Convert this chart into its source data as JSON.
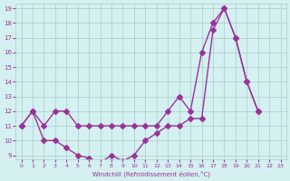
{
  "xlabel": "Windchill (Refroidissement éolien,°C)",
  "x": [
    0,
    1,
    2,
    3,
    4,
    5,
    6,
    7,
    8,
    9,
    10,
    11,
    12,
    13,
    14,
    15,
    16,
    17,
    18,
    19,
    20,
    21,
    22,
    23
  ],
  "temp_line": [
    11,
    12,
    11,
    12,
    12,
    11,
    11,
    11,
    11,
    11,
    11,
    11,
    11,
    12,
    13,
    12,
    16,
    18,
    19,
    17,
    14,
    12,
    null,
    null
  ],
  "windchill_line": [
    11,
    12,
    10,
    10,
    9.5,
    9,
    8.8,
    8.5,
    9,
    8.6,
    9,
    10,
    10.5,
    11,
    11,
    11.5,
    11.5,
    17.5,
    19,
    17,
    14,
    12,
    null,
    null
  ],
  "ylim": [
    9,
    19
  ],
  "xlim": [
    0,
    23
  ],
  "yticks": [
    9,
    10,
    11,
    12,
    13,
    14,
    15,
    16,
    17,
    18,
    19
  ],
  "xticks": [
    0,
    1,
    2,
    3,
    4,
    5,
    6,
    7,
    8,
    9,
    10,
    11,
    12,
    13,
    14,
    15,
    16,
    17,
    18,
    19,
    20,
    21,
    22,
    23
  ],
  "line_color": "#993399",
  "bg_color": "#d4f0f0",
  "grid_color": "#aacccc",
  "marker": "D",
  "marker_size": 3,
  "line_width": 1.0
}
